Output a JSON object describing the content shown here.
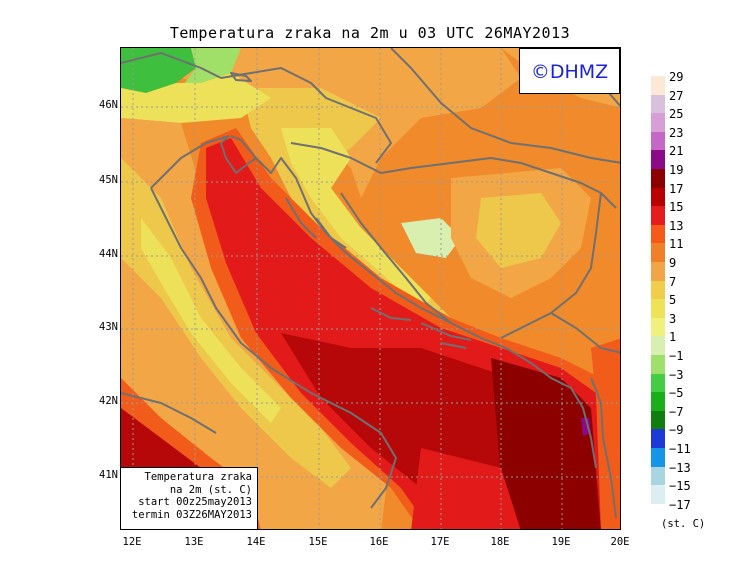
{
  "title": "Temperatura zraka na 2m u 03 UTC 26MAY2013",
  "logo_text": "©DHMZ",
  "info_box": {
    "line1": "Temperatura zraka",
    "line2": "na 2m (st. C)",
    "line3": "start 00z25may2013",
    "line4": "termin 03Z26MAY2013"
  },
  "lat_labels": [
    "46N",
    "45N",
    "44N",
    "43N",
    "42N",
    "41N"
  ],
  "lon_labels": [
    "12E",
    "13E",
    "14E",
    "15E",
    "16E",
    "17E",
    "18E",
    "19E",
    "20E"
  ],
  "legend": {
    "unit": "(st. C)",
    "labels": [
      "29",
      "27",
      "25",
      "23",
      "21",
      "19",
      "17",
      "15",
      "13",
      "11",
      "9",
      "7",
      "5",
      "3",
      "1",
      "−1",
      "−3",
      "−5",
      "−7",
      "−9",
      "−11",
      "−13",
      "−15",
      "−17"
    ],
    "colors": [
      "#fbe9d6",
      "#d9c0dc",
      "#d79ed8",
      "#c467c6",
      "#8b0a8a",
      "#8c0000",
      "#b80000",
      "#e41c1c",
      "#f55a18",
      "#f08028",
      "#f2a548",
      "#f0ce4c",
      "#eee25a",
      "#f0f07c",
      "#d7efb0",
      "#9fe06c",
      "#44cc44",
      "#1bae1b",
      "#0f7e0f",
      "#1d3ad8",
      "#1595e8",
      "#a8d6e0",
      "#ddeef2"
    ]
  },
  "map_colors": {
    "base": "#f08a2a",
    "sea_warm": "#e21a1a",
    "sea_hot": "#b60808",
    "sea_hottest": "#8c0000",
    "coast_warm": "#f25c1a",
    "inland_mid": "#f2a646",
    "inland_cool": "#eec84a",
    "mountain": "#eee15a",
    "peak": "#f0f07a",
    "cold": "#d8efb0",
    "alps_green": "#3ec03e",
    "alps_lightgreen": "#a0e068",
    "hotspot_purple": "#8b0a8a",
    "border": "#707070",
    "grid": "#9a9a9a"
  }
}
